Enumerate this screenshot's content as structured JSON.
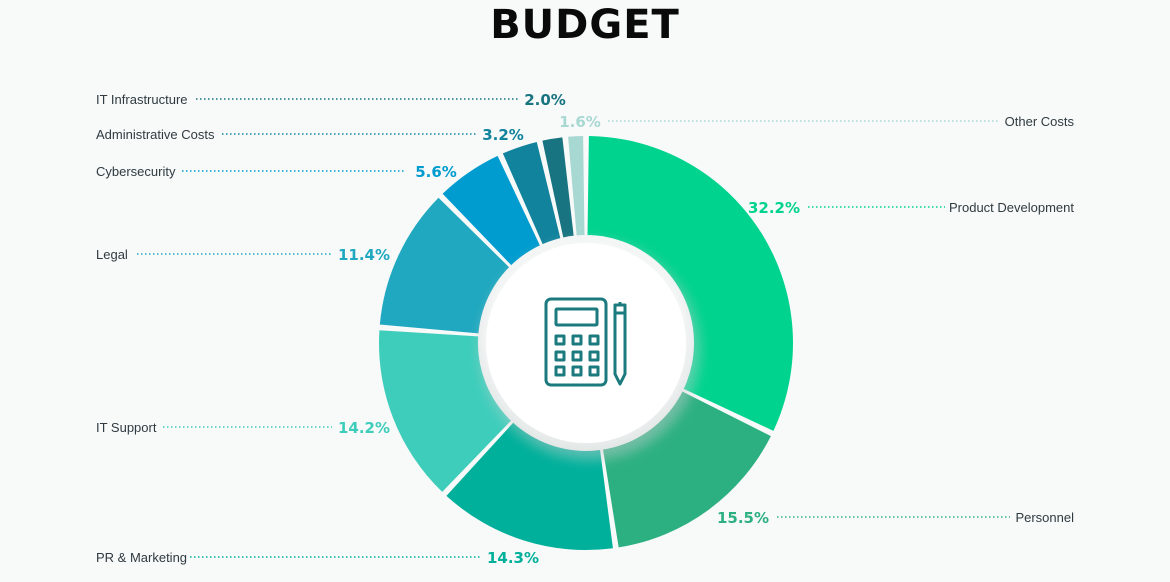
{
  "chart_data": {
    "type": "pie",
    "title": "BUDGET",
    "colors": {
      "Product Development": "#00d38e",
      "Personnel": "#2cb082",
      "PR & Marketing": "#00b09b",
      "IT Support": "#3ecdbb",
      "Legal": "#1fa8c0",
      "Cybersecurity": "#009ccf",
      "Administrative Costs": "#11839d",
      "IT Infrastructure": "#187480",
      "Other Costs": "#a8d8d2"
    },
    "slices": [
      {
        "label": "Product Development",
        "value": 32.2,
        "display": "32.2%"
      },
      {
        "label": "Personnel",
        "value": 15.5,
        "display": "15.5%"
      },
      {
        "label": "PR & Marketing",
        "value": 14.3,
        "display": "14.3%"
      },
      {
        "label": "IT Support",
        "value": 14.2,
        "display": "14.2%"
      },
      {
        "label": "Legal",
        "value": 11.4,
        "display": "11.4%"
      },
      {
        "label": "Cybersecurity",
        "value": 5.6,
        "display": "5.6%"
      },
      {
        "label": "Administrative Costs",
        "value": 3.2,
        "display": "3.2%"
      },
      {
        "label": "IT Infrastructure",
        "value": 2.0,
        "display": "2.0%"
      },
      {
        "label": "Other Costs",
        "value": 1.6,
        "display": "1.6%"
      }
    ],
    "center_icon": "calculator-pen-icon"
  }
}
